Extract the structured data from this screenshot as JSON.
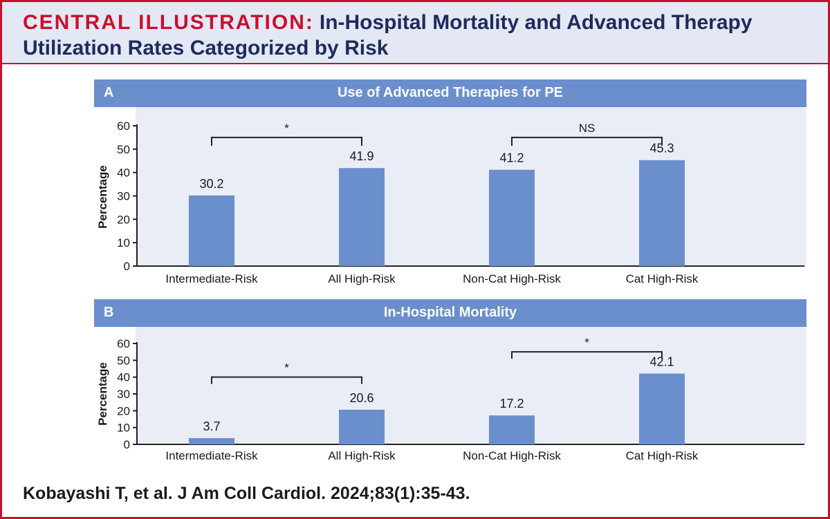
{
  "header": {
    "prefix": "CENTRAL ILLUSTRATION:",
    "title": "In-Hospital Mortality and Advanced Therapy Utilization Rates Categorized by Risk"
  },
  "citation": "Kobayashi T, et al. J Am Coll Cardiol. 2024;83(1):35-43.",
  "colors": {
    "bar": "#6a8fcc",
    "accent": "#c8102e",
    "plot_bg": "#e9edf6"
  },
  "chart_data": [
    {
      "type": "bar",
      "panel": "A",
      "title": "Use of Advanced Therapies for PE",
      "ylabel": "Percentage",
      "xlabel": "",
      "ylim": [
        0,
        60
      ],
      "yticks": [
        0,
        10,
        20,
        30,
        40,
        50,
        60
      ],
      "categories": [
        "Intermediate-Risk",
        "All High-Risk",
        "Non-Cat High-Risk",
        "Cat High-Risk"
      ],
      "values": [
        30.2,
        41.9,
        41.2,
        45.3
      ],
      "value_labels": [
        "30.2",
        "41.9",
        "41.2",
        "45.3"
      ],
      "comparisons": [
        {
          "from": 0,
          "to": 1,
          "label": "*",
          "level": 55
        },
        {
          "from": 2,
          "to": 3,
          "label": "NS",
          "level": 55
        }
      ],
      "grid": false
    },
    {
      "type": "bar",
      "panel": "B",
      "title": "In-Hospital Mortality",
      "ylabel": "Percentage",
      "xlabel": "",
      "ylim": [
        0,
        60
      ],
      "yticks": [
        0,
        10,
        20,
        30,
        40,
        50,
        60
      ],
      "categories": [
        "Intermediate-Risk",
        "All High-Risk",
        "Non-Cat High-Risk",
        "Cat High-Risk"
      ],
      "values": [
        3.7,
        20.6,
        17.2,
        42.1
      ],
      "value_labels": [
        "3.7",
        "20.6",
        "17.2",
        "42.1"
      ],
      "comparisons": [
        {
          "from": 0,
          "to": 1,
          "label": "*",
          "level": 40
        },
        {
          "from": 2,
          "to": 3,
          "label": "*",
          "level": 55
        }
      ],
      "grid": false
    }
  ]
}
